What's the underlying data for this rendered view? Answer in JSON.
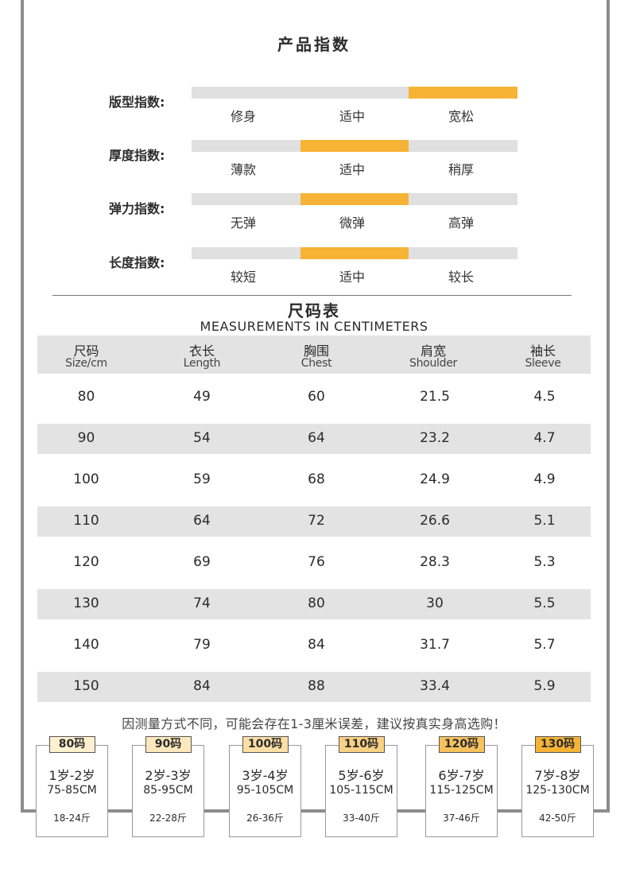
{
  "index": {
    "title": "产品指数",
    "accent": "#f6b335",
    "track": "#e0e0e0",
    "rows": [
      {
        "label": "版型指数:",
        "options": [
          "修身",
          "适中",
          "宽松"
        ],
        "selected": 2
      },
      {
        "label": "厚度指数:",
        "options": [
          "薄款",
          "适中",
          "稍厚"
        ],
        "selected": 1
      },
      {
        "label": "弹力指数:",
        "options": [
          "无弹",
          "微弹",
          "高弹"
        ],
        "selected": 1
      },
      {
        "label": "长度指数:",
        "options": [
          "较短",
          "适中",
          "较长"
        ],
        "selected": 1
      }
    ]
  },
  "size_table": {
    "title": "尺码表",
    "subtitle": "MEASUREMENTS IN CENTIMETERS",
    "headers": [
      {
        "cn": "尺码",
        "en": "Size/cm"
      },
      {
        "cn": "衣长",
        "en": "Length"
      },
      {
        "cn": "胸围",
        "en": "Chest"
      },
      {
        "cn": "肩宽",
        "en": "Shoulder"
      },
      {
        "cn": "袖长",
        "en": "Sleeve"
      }
    ],
    "rows": [
      [
        "80",
        "49",
        "60",
        "21.5",
        "4.5"
      ],
      [
        "90",
        "54",
        "64",
        "23.2",
        "4.7"
      ],
      [
        "100",
        "59",
        "68",
        "24.9",
        "4.9"
      ],
      [
        "110",
        "64",
        "72",
        "26.6",
        "5.1"
      ],
      [
        "120",
        "69",
        "76",
        "28.3",
        "5.3"
      ],
      [
        "130",
        "74",
        "80",
        "30",
        "5.5"
      ],
      [
        "140",
        "79",
        "84",
        "31.7",
        "5.7"
      ],
      [
        "150",
        "84",
        "88",
        "33.4",
        "5.9"
      ]
    ]
  },
  "note": "因测量方式不同，可能会存在1-3厘米误差，建议按真实身高选购！",
  "age_cards": [
    {
      "size": "80码",
      "age": "1岁-2岁",
      "height": "75-85CM",
      "weight": "18-24斤",
      "tag_color": "#fdf0d0"
    },
    {
      "size": "90码",
      "age": "2岁-3岁",
      "height": "85-95CM",
      "weight": "22-28斤",
      "tag_color": "#fce8bc"
    },
    {
      "size": "100码",
      "age": "3岁-4岁",
      "height": "95-105CM",
      "weight": "26-36斤",
      "tag_color": "#fbdfa4"
    },
    {
      "size": "110码",
      "age": "5岁-6岁",
      "height": "105-115CM",
      "weight": "33-40斤",
      "tag_color": "#f9d184"
    },
    {
      "size": "120码",
      "age": "6岁-7岁",
      "height": "115-125CM",
      "weight": "37-46斤",
      "tag_color": "#f7c25c"
    },
    {
      "size": "130码",
      "age": "7岁-8岁",
      "height": "125-130CM",
      "weight": "42-50斤",
      "tag_color": "#f5b335"
    }
  ]
}
